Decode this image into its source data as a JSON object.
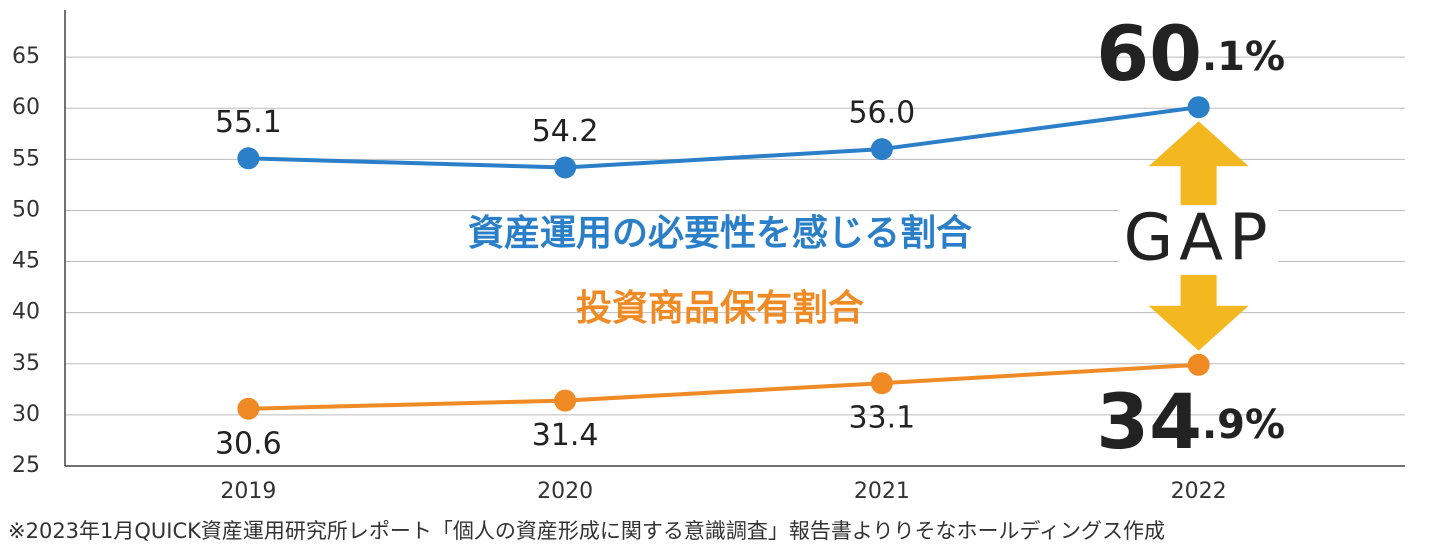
{
  "chart_data": {
    "type": "line",
    "categories": [
      "2019",
      "2020",
      "2021",
      "2022"
    ],
    "series": [
      {
        "name": "資産運用の必要性を感じる割合",
        "color": "#2a7fc8",
        "values": [
          55.1,
          54.2,
          56.0,
          60.1
        ],
        "value_labels": [
          "55.1",
          "54.2",
          "56.0",
          "60.1%"
        ]
      },
      {
        "name": "投資商品保有割合",
        "color": "#f08a24",
        "values": [
          30.6,
          31.4,
          33.1,
          34.9
        ],
        "value_labels": [
          "30.6",
          "31.4",
          "33.1",
          "34.9%"
        ]
      }
    ],
    "ylim": [
      25,
      70
    ],
    "yticks": [
      25,
      30,
      35,
      40,
      45,
      50,
      55,
      60,
      65
    ],
    "grid": true,
    "annotation": "GAP",
    "arrow_color": "#f3b820",
    "footnote": "※2023年1月QUICK資産運用研究所レポート「個人の資産形成に関する意識調査」報告書よりりそなホールディングス作成"
  }
}
